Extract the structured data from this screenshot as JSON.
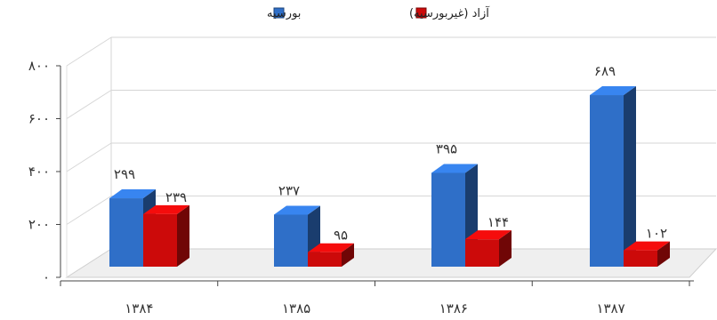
{
  "chart_data": {
    "type": "bar",
    "categories": [
      "۱۳۸۴",
      "۱۳۸۵",
      "۱۳۸۶",
      "۱۳۸۷"
    ],
    "series": [
      {
        "name": "بورسیه",
        "values": [
          299,
          237,
          395,
          689
        ],
        "labels": [
          "۲۹۹",
          "۲۳۷",
          "۳۹۵",
          "۶۸۹"
        ],
        "color": "#2f6fc8"
      },
      {
        "name": "آزاد (غیربورسیه)",
        "values": [
          239,
          95,
          144,
          102
        ],
        "labels": [
          "۲۳۹",
          "۹۵",
          "۱۴۴",
          "۱۰۲"
        ],
        "color": "#cc0a0a"
      }
    ],
    "yticks": [
      0,
      200,
      400,
      600,
      800
    ],
    "ytick_labels": [
      "۰",
      "۲۰۰",
      "۴۰۰",
      "۶۰۰",
      "۸۰۰"
    ],
    "ylim": [
      0,
      800
    ],
    "grid": true,
    "legend": "top-center",
    "style": "3d-perspective"
  }
}
